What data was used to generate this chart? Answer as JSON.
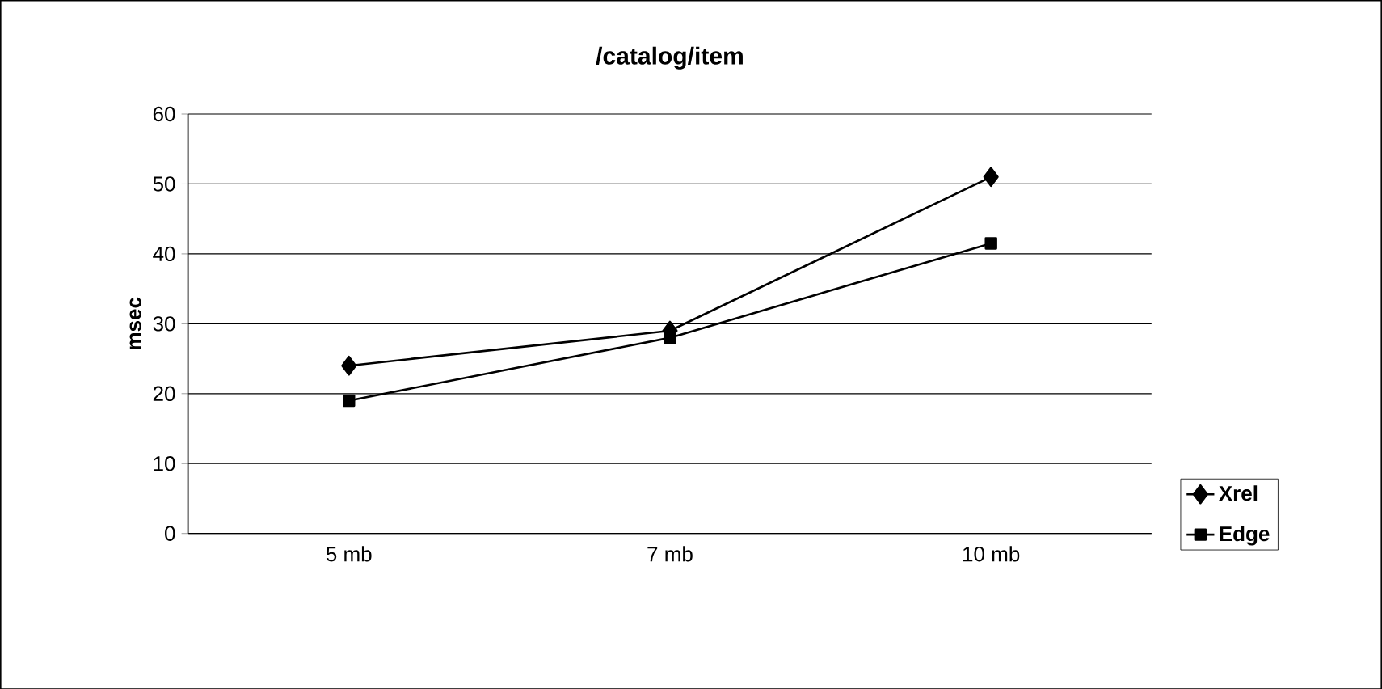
{
  "chart_data": {
    "type": "line",
    "title": "/catalog/item",
    "ylabel": "msec",
    "categories": [
      "5 mb",
      "7 mb",
      "10 mb"
    ],
    "series": [
      {
        "name": "Xrel",
        "color": "#000000",
        "marker": "diamond",
        "values": [
          24,
          29,
          51
        ]
      },
      {
        "name": "Edge",
        "color": "#000000",
        "marker": "square",
        "values": [
          19,
          28,
          41.5
        ]
      }
    ],
    "ylim": [
      0,
      60
    ],
    "yticks": [
      0,
      10,
      20,
      30,
      40,
      50,
      60
    ],
    "grid": "y",
    "legend": "right",
    "line_style": "solid"
  }
}
